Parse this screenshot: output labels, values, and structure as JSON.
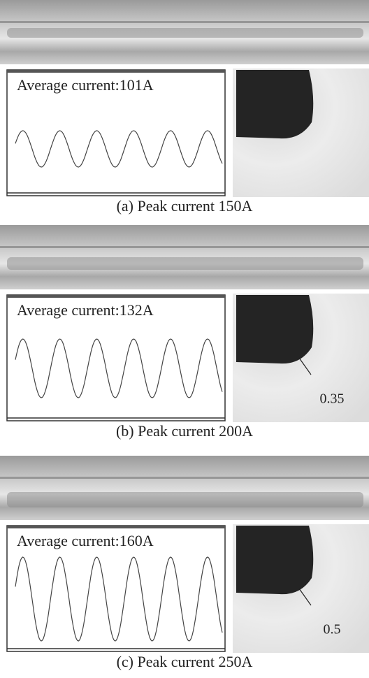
{
  "panels": [
    {
      "waveform_label": "Average current:101A",
      "caption": "(a) Peak current 150A"
    },
    {
      "waveform_label": "Average current:132A",
      "measurement": "0.35",
      "caption": "(b) Peak current 200A"
    },
    {
      "waveform_label": "Average current:160A",
      "measurement": "0.5",
      "caption": "(c) Peak current 250A"
    }
  ]
}
